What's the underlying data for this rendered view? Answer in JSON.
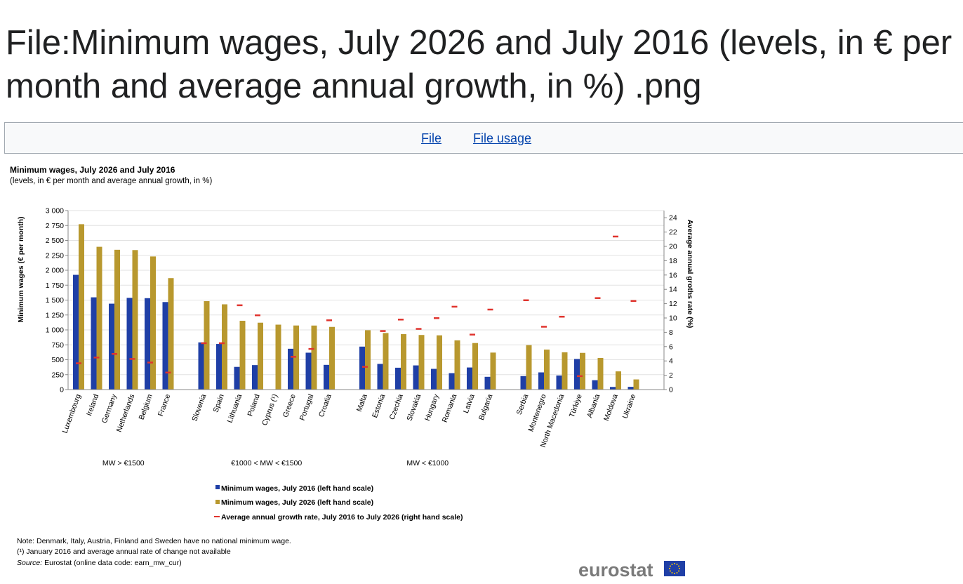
{
  "page": {
    "title": "File:Minimum wages, July 2026 and July 2016 (levels, in € per month and average annual growth, in %) .png",
    "tabs": [
      {
        "label": "File"
      },
      {
        "label": "File usage"
      }
    ]
  },
  "chart_data": {
    "type": "bar",
    "title": "Minimum wages, July 2026 and July 2016",
    "subtitle": "(levels, in € per month and average annual growth, in %)",
    "ylabel": "Minimum wages (€ per month)",
    "y2label": "Average annual groths rate (%)",
    "ylim": [
      0,
      3000
    ],
    "y2lim": [
      0,
      25
    ],
    "yticks": [
      "0",
      "250",
      "500",
      "750",
      "1 000",
      "1 250",
      "1 500",
      "1 750",
      "2 000",
      "2 250",
      "2 500",
      "2 750",
      "3 000"
    ],
    "y2ticks": [
      "0",
      "2",
      "4",
      "6",
      "8",
      "10",
      "12",
      "14",
      "16",
      "18",
      "20",
      "22",
      "24"
    ],
    "grid": true,
    "groups": [
      {
        "label": "MW > €1500",
        "categories": [
          "Luxembourg",
          "Ireland",
          "Germany",
          "Netherlands",
          "Belgium",
          "France"
        ]
      },
      {
        "label": "€1000 < MW < €1500",
        "categories": [
          "Slovenia",
          "Spain",
          "Lithuania",
          "Poland",
          "Cyprus (¹)",
          "Greece",
          "Portugal",
          "Croatia"
        ]
      },
      {
        "label": "MW < €1000",
        "categories": [
          "Malta",
          "Estonia",
          "Czechia",
          "Slovakia",
          "Hungary",
          "Romania",
          "Latvia",
          "Bulgaria"
        ]
      },
      {
        "label": "",
        "categories": [
          "Serbia",
          "Montenegro",
          "North Macedonia",
          "Türkiye",
          "Albania",
          "Moldova",
          "Ukraine"
        ]
      }
    ],
    "series": [
      {
        "name": "Minimum wages, July 2016 (left hand scale)",
        "color": "#1f3fa6",
        "axis": "left",
        "values": [
          1923,
          1546,
          1440,
          1537,
          1532,
          1467,
          791,
          764,
          380,
          410,
          null,
          684,
          618,
          414,
          720,
          430,
          366,
          405,
          347,
          275,
          370,
          214,
          226,
          288,
          236,
          513,
          157,
          44,
          46
        ]
      },
      {
        "name": "Minimum wages, July 2026 (left hand scale)",
        "color": "#b8982e",
        "axis": "left",
        "values": [
          2772,
          2393,
          2343,
          2338,
          2231,
          1868,
          1482,
          1429,
          1153,
          1121,
          1088,
          1074,
          1073,
          1050,
          995,
          948,
          929,
          915,
          909,
          825,
          780,
          620,
          745,
          670,
          625,
          615,
          530,
          305,
          170
        ]
      },
      {
        "name": "Average annual growth rate, July 2016 to July 2026 (right hand scale)",
        "color": "#e0342e",
        "axis": "right",
        "values": [
          3.7,
          4.5,
          5.0,
          4.3,
          3.8,
          2.4,
          6.5,
          6.5,
          11.8,
          10.4,
          null,
          4.6,
          5.7,
          9.7,
          3.2,
          8.2,
          9.8,
          8.5,
          10.0,
          11.6,
          7.7,
          11.2,
          12.5,
          8.8,
          10.2,
          1.9,
          12.8,
          21.4,
          12.4
        ]
      }
    ],
    "legend_position": "bottom",
    "notes": [
      "Note: Denmark, Italy, Austria, Finland and Sweden have no national minimum wage.",
      "(¹) January 2016 and average annual rate of change not available"
    ],
    "source_label": "Source:",
    "source_text": " Eurostat (online data code: earn_mw_cur)",
    "logo_text": "eurostat"
  }
}
